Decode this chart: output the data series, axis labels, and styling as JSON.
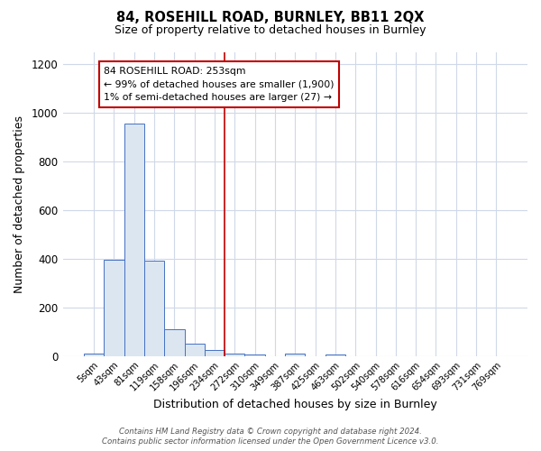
{
  "title1": "84, ROSEHILL ROAD, BURNLEY, BB11 2QX",
  "title2": "Size of property relative to detached houses in Burnley",
  "xlabel": "Distribution of detached houses by size in Burnley",
  "ylabel": "Number of detached properties",
  "footer1": "Contains HM Land Registry data © Crown copyright and database right 2024.",
  "footer2": "Contains public sector information licensed under the Open Government Licence v3.0.",
  "annotation_line1": "84 ROSEHILL ROAD: 253sqm",
  "annotation_line2": "← 99% of detached houses are smaller (1,900)",
  "annotation_line3": "1% of semi-detached houses are larger (27) →",
  "bar_labels": [
    "5sqm",
    "43sqm",
    "81sqm",
    "119sqm",
    "158sqm",
    "196sqm",
    "234sqm",
    "272sqm",
    "310sqm",
    "349sqm",
    "387sqm",
    "425sqm",
    "463sqm",
    "502sqm",
    "540sqm",
    "578sqm",
    "616sqm",
    "654sqm",
    "693sqm",
    "731sqm",
    "769sqm"
  ],
  "bar_values": [
    10,
    395,
    955,
    390,
    110,
    50,
    25,
    10,
    5,
    0,
    10,
    0,
    5,
    0,
    0,
    0,
    0,
    0,
    0,
    0,
    0
  ],
  "bar_color": "#dce6f1",
  "bar_edge_color": "#4472c4",
  "vline_color": "#c00000",
  "vline_x_index": 6.5,
  "ylim": [
    0,
    1250
  ],
  "yticks": [
    0,
    200,
    400,
    600,
    800,
    1000,
    1200
  ],
  "bg_color": "#ffffff",
  "grid_color": "#d0d8e8",
  "title1_fontsize": 10.5,
  "title2_fontsize": 9
}
